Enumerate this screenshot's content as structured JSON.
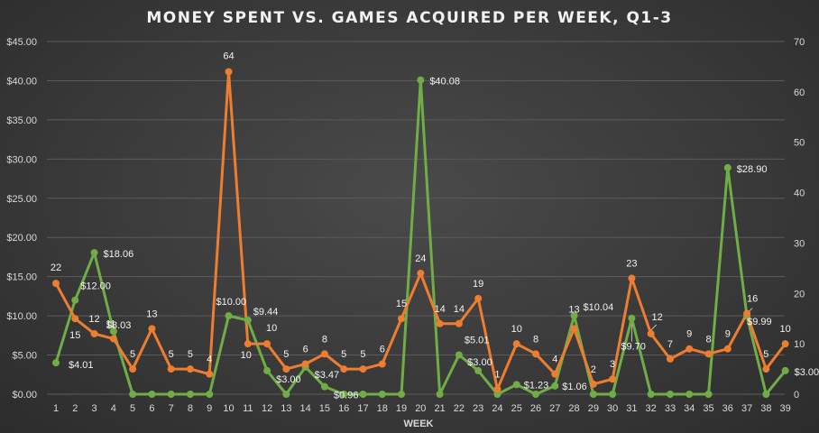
{
  "chart_data": {
    "type": "line",
    "title": "MONEY SPENT VS. GAMES ACQUIRED PER WEEK, Q1-3",
    "xlabel": "WEEK",
    "ylabel_left": "",
    "ylabel_right": "",
    "grid": true,
    "categories": [
      "1",
      "2",
      "3",
      "4",
      "5",
      "6",
      "7",
      "8",
      "9",
      "10",
      "11",
      "12",
      "13",
      "14",
      "15",
      "16",
      "17",
      "18",
      "19",
      "20",
      "21",
      "22",
      "23",
      "24",
      "25",
      "26",
      "27",
      "28",
      "29",
      "30",
      "31",
      "32",
      "33",
      "34",
      "35",
      "36",
      "37",
      "38",
      "39"
    ],
    "left_axis": {
      "min": 0,
      "max": 45,
      "step": 5,
      "ticks": [
        "$0.00",
        "$5.00",
        "$10.00",
        "$15.00",
        "$20.00",
        "$25.00",
        "$30.00",
        "$35.00",
        "$40.00",
        "$45.00"
      ]
    },
    "right_axis": {
      "min": 0,
      "max": 70,
      "step": 10,
      "ticks": [
        "0",
        "10",
        "20",
        "30",
        "40",
        "50",
        "60",
        "70"
      ]
    },
    "series": [
      {
        "name": "Money Spent",
        "axis": "left",
        "color": "#70ad47",
        "values": [
          4.01,
          12.0,
          18.06,
          8.03,
          0,
          0,
          0,
          0,
          0,
          10.0,
          9.44,
          3.0,
          0,
          3.47,
          0.96,
          0,
          0,
          0,
          0,
          40.08,
          0,
          5.01,
          3.0,
          0,
          1.23,
          0,
          1.06,
          10.04,
          0,
          0,
          9.7,
          0,
          0,
          0,
          0,
          28.9,
          9.99,
          0,
          3.0
        ],
        "labels": [
          "$4.01",
          "$12.00",
          "$18.06",
          "$8.03",
          "",
          "",
          "",
          "",
          "",
          "$10.00",
          "$9.44",
          "$3.00",
          "",
          "$3.47",
          "$0.96",
          "",
          "",
          "",
          "",
          "$40.08",
          "",
          "$5.01",
          "$3.00",
          "",
          "$1.23",
          "",
          "$1.06",
          "$10.04",
          "",
          "",
          "$9.70",
          "",
          "",
          "",
          "",
          "$28.90",
          "$9.99",
          "",
          "$3.00"
        ]
      },
      {
        "name": "Games Acquired",
        "axis": "right",
        "color": "#ed7d31",
        "values": [
          22,
          15,
          12,
          11,
          5,
          13,
          5,
          5,
          4,
          64,
          10,
          10,
          5,
          6,
          8,
          5,
          5,
          6,
          15,
          24,
          14,
          14,
          19,
          1,
          10,
          8,
          4,
          13,
          2,
          3,
          23,
          12,
          7,
          9,
          8,
          9,
          16,
          5,
          10
        ],
        "labels": [
          "22",
          "15",
          "12",
          "11",
          "5",
          "13",
          "5",
          "5",
          "4",
          "64",
          "10",
          "10",
          "5",
          "6",
          "8",
          "5",
          "5",
          "6",
          "15",
          "24",
          "14",
          "14",
          "19",
          "1",
          "10",
          "8",
          "4",
          "13",
          "2",
          "3",
          "23",
          "12",
          "7",
          "9",
          "8",
          "9",
          "16",
          "5",
          "10"
        ]
      }
    ]
  }
}
